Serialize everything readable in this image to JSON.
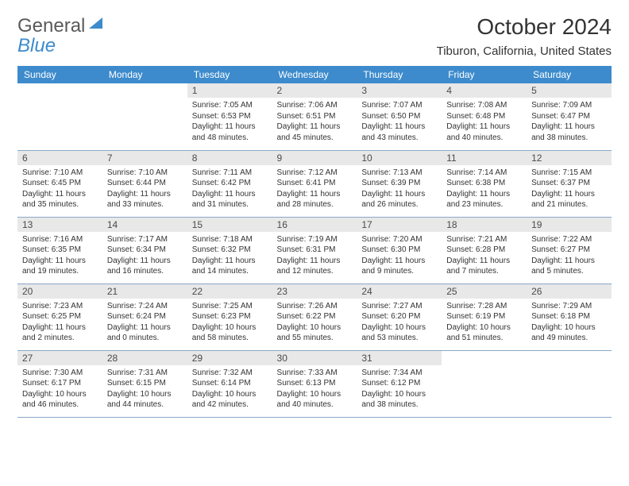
{
  "logo": {
    "general": "General",
    "blue": "Blue"
  },
  "title": "October 2024",
  "location": "Tiburon, California, United States",
  "colors": {
    "header_bg": "#3d8bcc",
    "header_fg": "#ffffff",
    "daynum_bg": "#e8e8e8",
    "daynum_fg": "#4a4a4a",
    "row_border": "#8aa8c8",
    "text": "#333333"
  },
  "daynames": [
    "Sunday",
    "Monday",
    "Tuesday",
    "Wednesday",
    "Thursday",
    "Friday",
    "Saturday"
  ],
  "weeks": [
    [
      null,
      null,
      {
        "n": "1",
        "sr": "Sunrise: 7:05 AM",
        "ss": "Sunset: 6:53 PM",
        "d1": "Daylight: 11 hours",
        "d2": "and 48 minutes."
      },
      {
        "n": "2",
        "sr": "Sunrise: 7:06 AM",
        "ss": "Sunset: 6:51 PM",
        "d1": "Daylight: 11 hours",
        "d2": "and 45 minutes."
      },
      {
        "n": "3",
        "sr": "Sunrise: 7:07 AM",
        "ss": "Sunset: 6:50 PM",
        "d1": "Daylight: 11 hours",
        "d2": "and 43 minutes."
      },
      {
        "n": "4",
        "sr": "Sunrise: 7:08 AM",
        "ss": "Sunset: 6:48 PM",
        "d1": "Daylight: 11 hours",
        "d2": "and 40 minutes."
      },
      {
        "n": "5",
        "sr": "Sunrise: 7:09 AM",
        "ss": "Sunset: 6:47 PM",
        "d1": "Daylight: 11 hours",
        "d2": "and 38 minutes."
      }
    ],
    [
      {
        "n": "6",
        "sr": "Sunrise: 7:10 AM",
        "ss": "Sunset: 6:45 PM",
        "d1": "Daylight: 11 hours",
        "d2": "and 35 minutes."
      },
      {
        "n": "7",
        "sr": "Sunrise: 7:10 AM",
        "ss": "Sunset: 6:44 PM",
        "d1": "Daylight: 11 hours",
        "d2": "and 33 minutes."
      },
      {
        "n": "8",
        "sr": "Sunrise: 7:11 AM",
        "ss": "Sunset: 6:42 PM",
        "d1": "Daylight: 11 hours",
        "d2": "and 31 minutes."
      },
      {
        "n": "9",
        "sr": "Sunrise: 7:12 AM",
        "ss": "Sunset: 6:41 PM",
        "d1": "Daylight: 11 hours",
        "d2": "and 28 minutes."
      },
      {
        "n": "10",
        "sr": "Sunrise: 7:13 AM",
        "ss": "Sunset: 6:39 PM",
        "d1": "Daylight: 11 hours",
        "d2": "and 26 minutes."
      },
      {
        "n": "11",
        "sr": "Sunrise: 7:14 AM",
        "ss": "Sunset: 6:38 PM",
        "d1": "Daylight: 11 hours",
        "d2": "and 23 minutes."
      },
      {
        "n": "12",
        "sr": "Sunrise: 7:15 AM",
        "ss": "Sunset: 6:37 PM",
        "d1": "Daylight: 11 hours",
        "d2": "and 21 minutes."
      }
    ],
    [
      {
        "n": "13",
        "sr": "Sunrise: 7:16 AM",
        "ss": "Sunset: 6:35 PM",
        "d1": "Daylight: 11 hours",
        "d2": "and 19 minutes."
      },
      {
        "n": "14",
        "sr": "Sunrise: 7:17 AM",
        "ss": "Sunset: 6:34 PM",
        "d1": "Daylight: 11 hours",
        "d2": "and 16 minutes."
      },
      {
        "n": "15",
        "sr": "Sunrise: 7:18 AM",
        "ss": "Sunset: 6:32 PM",
        "d1": "Daylight: 11 hours",
        "d2": "and 14 minutes."
      },
      {
        "n": "16",
        "sr": "Sunrise: 7:19 AM",
        "ss": "Sunset: 6:31 PM",
        "d1": "Daylight: 11 hours",
        "d2": "and 12 minutes."
      },
      {
        "n": "17",
        "sr": "Sunrise: 7:20 AM",
        "ss": "Sunset: 6:30 PM",
        "d1": "Daylight: 11 hours",
        "d2": "and 9 minutes."
      },
      {
        "n": "18",
        "sr": "Sunrise: 7:21 AM",
        "ss": "Sunset: 6:28 PM",
        "d1": "Daylight: 11 hours",
        "d2": "and 7 minutes."
      },
      {
        "n": "19",
        "sr": "Sunrise: 7:22 AM",
        "ss": "Sunset: 6:27 PM",
        "d1": "Daylight: 11 hours",
        "d2": "and 5 minutes."
      }
    ],
    [
      {
        "n": "20",
        "sr": "Sunrise: 7:23 AM",
        "ss": "Sunset: 6:25 PM",
        "d1": "Daylight: 11 hours",
        "d2": "and 2 minutes."
      },
      {
        "n": "21",
        "sr": "Sunrise: 7:24 AM",
        "ss": "Sunset: 6:24 PM",
        "d1": "Daylight: 11 hours",
        "d2": "and 0 minutes."
      },
      {
        "n": "22",
        "sr": "Sunrise: 7:25 AM",
        "ss": "Sunset: 6:23 PM",
        "d1": "Daylight: 10 hours",
        "d2": "and 58 minutes."
      },
      {
        "n": "23",
        "sr": "Sunrise: 7:26 AM",
        "ss": "Sunset: 6:22 PM",
        "d1": "Daylight: 10 hours",
        "d2": "and 55 minutes."
      },
      {
        "n": "24",
        "sr": "Sunrise: 7:27 AM",
        "ss": "Sunset: 6:20 PM",
        "d1": "Daylight: 10 hours",
        "d2": "and 53 minutes."
      },
      {
        "n": "25",
        "sr": "Sunrise: 7:28 AM",
        "ss": "Sunset: 6:19 PM",
        "d1": "Daylight: 10 hours",
        "d2": "and 51 minutes."
      },
      {
        "n": "26",
        "sr": "Sunrise: 7:29 AM",
        "ss": "Sunset: 6:18 PM",
        "d1": "Daylight: 10 hours",
        "d2": "and 49 minutes."
      }
    ],
    [
      {
        "n": "27",
        "sr": "Sunrise: 7:30 AM",
        "ss": "Sunset: 6:17 PM",
        "d1": "Daylight: 10 hours",
        "d2": "and 46 minutes."
      },
      {
        "n": "28",
        "sr": "Sunrise: 7:31 AM",
        "ss": "Sunset: 6:15 PM",
        "d1": "Daylight: 10 hours",
        "d2": "and 44 minutes."
      },
      {
        "n": "29",
        "sr": "Sunrise: 7:32 AM",
        "ss": "Sunset: 6:14 PM",
        "d1": "Daylight: 10 hours",
        "d2": "and 42 minutes."
      },
      {
        "n": "30",
        "sr": "Sunrise: 7:33 AM",
        "ss": "Sunset: 6:13 PM",
        "d1": "Daylight: 10 hours",
        "d2": "and 40 minutes."
      },
      {
        "n": "31",
        "sr": "Sunrise: 7:34 AM",
        "ss": "Sunset: 6:12 PM",
        "d1": "Daylight: 10 hours",
        "d2": "and 38 minutes."
      },
      null,
      null
    ]
  ]
}
